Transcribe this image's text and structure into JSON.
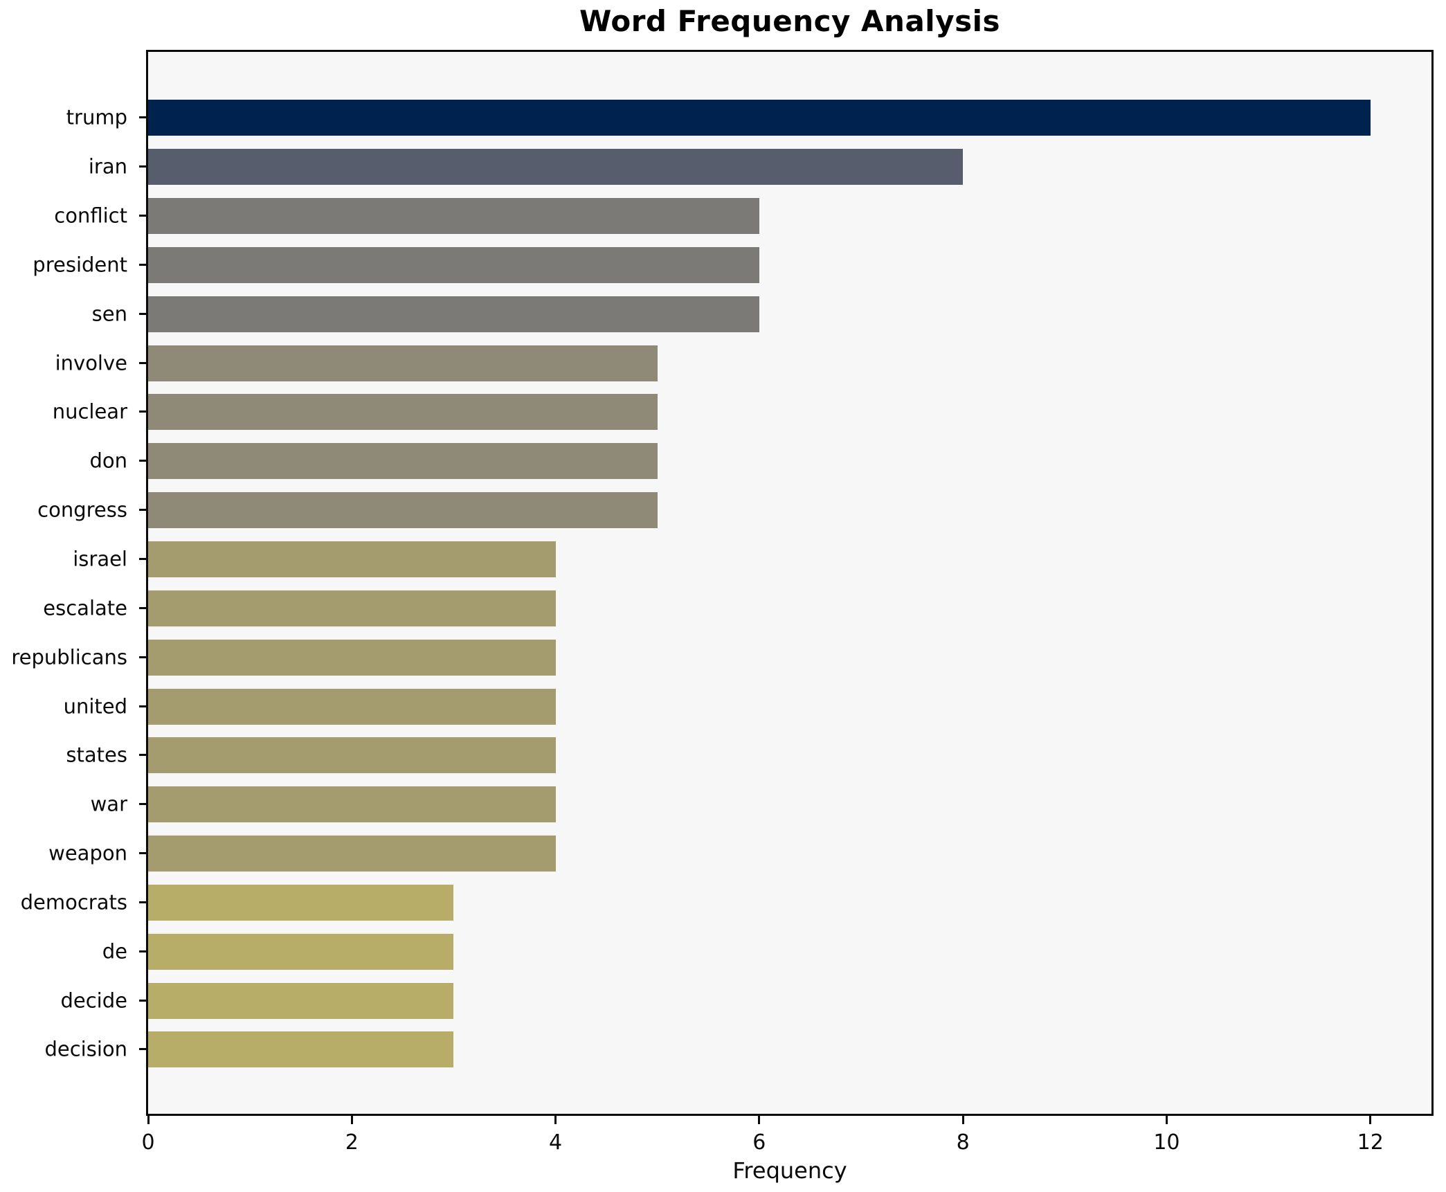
{
  "title": "Word Frequency Analysis",
  "xlabel": "Frequency",
  "chart_data": {
    "type": "bar",
    "orientation": "horizontal",
    "title": "Word Frequency Analysis",
    "xlabel": "Frequency",
    "ylabel": "",
    "categories": [
      "trump",
      "iran",
      "conflict",
      "president",
      "sen",
      "involve",
      "nuclear",
      "don",
      "congress",
      "israel",
      "escalate",
      "republicans",
      "united",
      "states",
      "war",
      "weapon",
      "democrats",
      "de",
      "decide",
      "decision"
    ],
    "values": [
      12,
      8,
      6,
      6,
      6,
      5,
      5,
      5,
      5,
      4,
      4,
      4,
      4,
      4,
      4,
      4,
      3,
      3,
      3,
      3
    ],
    "bar_colors": [
      "#00224e",
      "#575d6d",
      "#7b7a77",
      "#7b7a77",
      "#7b7a77",
      "#8f8977",
      "#8f8977",
      "#8f8977",
      "#8f8977",
      "#a49c6e",
      "#a49c6e",
      "#a49c6e",
      "#a49c6e",
      "#a49c6e",
      "#a49c6e",
      "#a49c6e",
      "#b8ac69",
      "#b8ac69",
      "#b8ac69",
      "#b8ac69"
    ],
    "xticks": [
      0,
      2,
      4,
      6,
      8,
      10,
      12
    ],
    "xlim": [
      0,
      12.6
    ],
    "grid": false,
    "legend": "none",
    "plot_bg": "#f7f7f8",
    "figure_bg": "#ffffff",
    "spine_color": "#0a0a0a"
  }
}
